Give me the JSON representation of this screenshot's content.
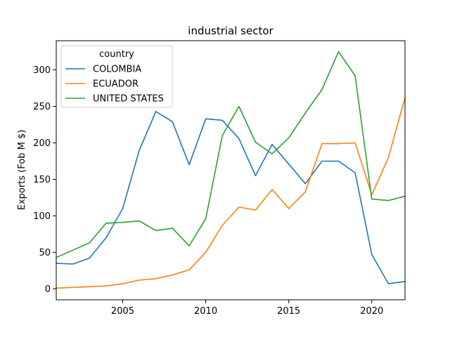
{
  "chart_data": {
    "type": "line",
    "title": "industrial sector",
    "xlabel": "",
    "ylabel": "Exports (Fob M $)",
    "x": [
      2001,
      2002,
      2003,
      2004,
      2005,
      2006,
      2007,
      2008,
      2009,
      2010,
      2011,
      2012,
      2013,
      2014,
      2015,
      2016,
      2017,
      2018,
      2019,
      2020,
      2021,
      2022
    ],
    "xlim": [
      2001,
      2022
    ],
    "ylim": [
      -15,
      340
    ],
    "xticks": [
      2005,
      2010,
      2015,
      2020
    ],
    "yticks": [
      0,
      50,
      100,
      150,
      200,
      250,
      300
    ],
    "legend": {
      "title": "country",
      "placement": "top-left"
    },
    "grid": false,
    "series": [
      {
        "name": "COLOMBIA",
        "color": "#1f77b4",
        "values": [
          35,
          34,
          42,
          70,
          110,
          190,
          243,
          229,
          170,
          233,
          231,
          206,
          155,
          198,
          171,
          144,
          175,
          175,
          159,
          47,
          7,
          10
        ]
      },
      {
        "name": "ECUADOR",
        "color": "#ff7f0e",
        "values": [
          1,
          2,
          3,
          4,
          7,
          12,
          14,
          19,
          26,
          50,
          87,
          112,
          108,
          136,
          110,
          133,
          199,
          199,
          200,
          129,
          180,
          262
        ]
      },
      {
        "name": "UNITED STATES",
        "color": "#2ca02c",
        "values": [
          43,
          53,
          63,
          90,
          91,
          93,
          80,
          83,
          59,
          96,
          210,
          250,
          201,
          185,
          207,
          241,
          273,
          325,
          292,
          123,
          121,
          127
        ]
      }
    ]
  }
}
